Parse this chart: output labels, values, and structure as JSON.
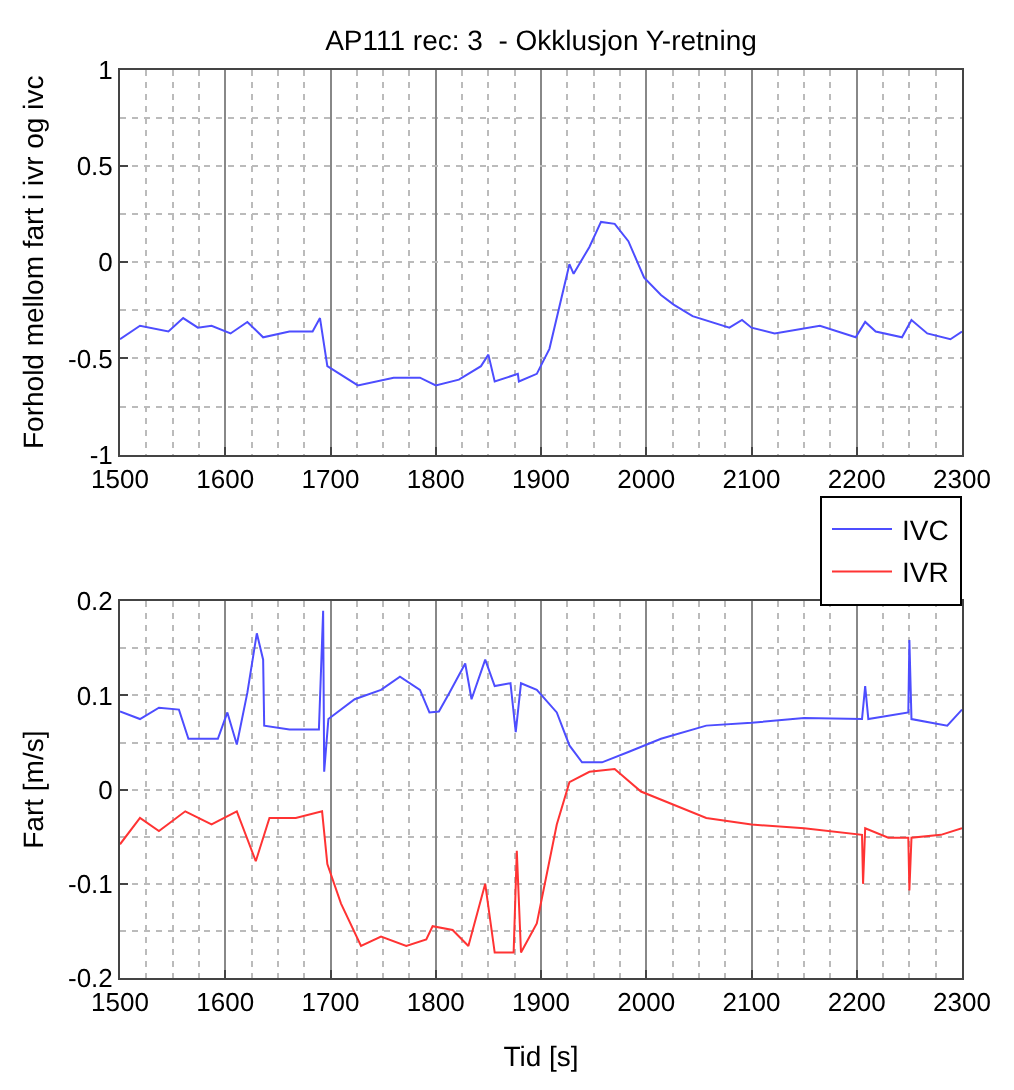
{
  "chart_data": [
    {
      "type": "line",
      "title": "AP111 rec: 3  - Okklusjon Y-retning",
      "ylabel": "Forhold mellom fart i ivr og ivc",
      "xlim": [
        1500,
        2300
      ],
      "xticks": [
        1500,
        1600,
        1700,
        1800,
        1900,
        2000,
        2100,
        2200,
        2300
      ],
      "ylim": [
        -1,
        1
      ],
      "yticks": [
        -1,
        -0.5,
        0,
        0.5,
        1
      ],
      "grid": true,
      "legend": false,
      "series": [
        {
          "color": "#4d4dff",
          "x": [
            1500,
            1519,
            1546,
            1560,
            1574,
            1587,
            1605,
            1621,
            1636,
            1661,
            1683,
            1690,
            1697,
            1726,
            1760,
            1785,
            1800,
            1822,
            1843,
            1850,
            1856,
            1878,
            1879,
            1896,
            1908,
            1927,
            1931,
            1946,
            1957,
            1970,
            1983,
            1998,
            2014,
            2026,
            2044,
            2079,
            2091,
            2100,
            2122,
            2165,
            2199,
            2208,
            2218,
            2243,
            2252,
            2267,
            2289,
            2300
          ],
          "values": [
            -0.4,
            -0.33,
            -0.36,
            -0.29,
            -0.34,
            -0.33,
            -0.37,
            -0.31,
            -0.39,
            -0.36,
            -0.36,
            -0.29,
            -0.54,
            -0.64,
            -0.6,
            -0.6,
            -0.64,
            -0.61,
            -0.54,
            -0.48,
            -0.62,
            -0.58,
            -0.62,
            -0.58,
            -0.45,
            -0.01,
            -0.06,
            0.08,
            0.21,
            0.2,
            0.11,
            -0.08,
            -0.17,
            -0.22,
            -0.28,
            -0.34,
            -0.3,
            -0.34,
            -0.37,
            -0.33,
            -0.39,
            -0.31,
            -0.36,
            -0.39,
            -0.3,
            -0.37,
            -0.4,
            -0.36
          ]
        }
      ]
    },
    {
      "type": "line",
      "xlabel": "Tid [s]",
      "ylabel": "Fart [m/s]",
      "xlim": [
        1500,
        2300
      ],
      "xticks": [
        1500,
        1600,
        1700,
        1800,
        1900,
        2000,
        2100,
        2200,
        2300
      ],
      "ylim": [
        -0.2,
        0.2
      ],
      "yticks": [
        -0.2,
        -0.1,
        0,
        0.1,
        0.2
      ],
      "grid": true,
      "legend": "top right",
      "series": [
        {
          "name": "IVC",
          "color": "#4d4dff",
          "x": [
            1500,
            1519,
            1537,
            1556,
            1565,
            1593,
            1602,
            1611,
            1621,
            1630,
            1636,
            1637,
            1661,
            1689,
            1693,
            1694,
            1698,
            1723,
            1748,
            1766,
            1785,
            1794,
            1803,
            1813,
            1828,
            1834,
            1847,
            1856,
            1871,
            1876,
            1881,
            1896,
            1915,
            1927,
            1939,
            1958,
            1983,
            2014,
            2057,
            2100,
            2150,
            2205,
            2208,
            2211,
            2249,
            2250,
            2252,
            2286,
            2300
          ],
          "values": [
            0.083,
            0.075,
            0.087,
            0.085,
            0.054,
            0.054,
            0.082,
            0.048,
            0.103,
            0.166,
            0.138,
            0.068,
            0.064,
            0.064,
            0.19,
            0.019,
            0.075,
            0.096,
            0.106,
            0.12,
            0.106,
            0.082,
            0.083,
            0.103,
            0.134,
            0.096,
            0.138,
            0.11,
            0.113,
            0.061,
            0.113,
            0.106,
            0.082,
            0.047,
            0.029,
            0.029,
            0.04,
            0.054,
            0.068,
            0.071,
            0.076,
            0.075,
            0.11,
            0.075,
            0.082,
            0.159,
            0.075,
            0.068,
            0.085
          ]
        },
        {
          "name": "IVR",
          "color": "#ff3333",
          "x": [
            1500,
            1519,
            1537,
            1562,
            1587,
            1611,
            1629,
            1642,
            1667,
            1692,
            1697,
            1710,
            1729,
            1748,
            1772,
            1791,
            1797,
            1816,
            1831,
            1847,
            1856,
            1874,
            1877,
            1881,
            1896,
            1915,
            1927,
            1946,
            1970,
            1995,
            2026,
            2057,
            2100,
            2150,
            2205,
            2206,
            2208,
            2230,
            2249,
            2250,
            2252,
            2280,
            2300
          ],
          "values": [
            -0.058,
            -0.03,
            -0.044,
            -0.023,
            -0.037,
            -0.023,
            -0.076,
            -0.03,
            -0.03,
            -0.023,
            -0.079,
            -0.121,
            -0.166,
            -0.156,
            -0.166,
            -0.159,
            -0.145,
            -0.149,
            -0.166,
            -0.1,
            -0.173,
            -0.173,
            -0.065,
            -0.173,
            -0.142,
            -0.037,
            0.008,
            0.019,
            0.022,
            -0.002,
            -0.016,
            -0.03,
            -0.037,
            -0.041,
            -0.048,
            -0.1,
            -0.041,
            -0.051,
            -0.051,
            -0.107,
            -0.051,
            -0.048,
            -0.041
          ]
        }
      ]
    }
  ]
}
